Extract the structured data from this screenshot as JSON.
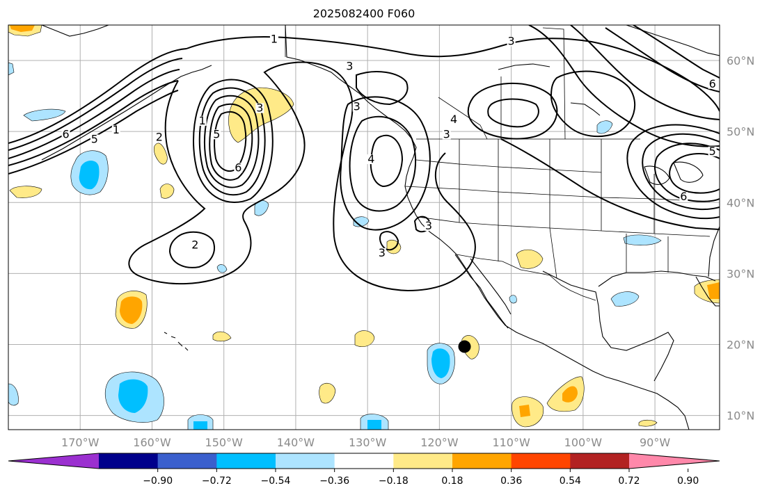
{
  "title": "2025082400 F060",
  "map": {
    "lon_range": [
      -180,
      -81
    ],
    "lat_range": [
      8,
      65
    ],
    "grid": true,
    "lon_ticks": [
      "170°W",
      "160°W",
      "150°W",
      "140°W",
      "130°W",
      "120°W",
      "110°W",
      "100°W",
      "90°W"
    ],
    "lat_ticks": [
      "60°N",
      "50°N",
      "40°N",
      "30°N",
      "20°N",
      "10°N"
    ],
    "marker": {
      "lon": -116.5,
      "lat": 19.7,
      "color": "#000000"
    }
  },
  "colorbar": {
    "ticks": [
      "−0.90",
      "−0.72",
      "−0.54",
      "−0.36",
      "−0.18",
      "0.18",
      "0.36",
      "0.54",
      "0.72",
      "0.90"
    ],
    "colors": [
      "#9b30d0",
      "#00008b",
      "#3a5fcd",
      "#00bfff",
      "#ade4ff",
      "#ffffff",
      "#ffea88",
      "#ffa500",
      "#ff4500",
      "#b22222",
      "#ff88aa"
    ]
  },
  "contours": {
    "labels": [
      {
        "text": "1",
        "lon": -143,
        "lat": 62.7
      },
      {
        "text": "3",
        "lon": -132.5,
        "lat": 58.9
      },
      {
        "text": "3",
        "lon": -110,
        "lat": 62.4
      },
      {
        "text": "6",
        "lon": -82,
        "lat": 56.4
      },
      {
        "text": "4",
        "lon": -118,
        "lat": 51.4
      },
      {
        "text": "3",
        "lon": -119,
        "lat": 49.3
      },
      {
        "text": "4",
        "lon": -129.5,
        "lat": 45.8
      },
      {
        "text": "3",
        "lon": -131.5,
        "lat": 53.2
      },
      {
        "text": "1",
        "lon": -165,
        "lat": 49.9
      },
      {
        "text": "5",
        "lon": -168,
        "lat": 48.6
      },
      {
        "text": "2",
        "lon": -159,
        "lat": 48.9
      },
      {
        "text": "6",
        "lon": -172,
        "lat": 49.3
      },
      {
        "text": "1",
        "lon": -153,
        "lat": 51.2
      },
      {
        "text": "5",
        "lon": -151,
        "lat": 49.3
      },
      {
        "text": "6",
        "lon": -148,
        "lat": 44.6
      },
      {
        "text": "3",
        "lon": -145,
        "lat": 53.0
      },
      {
        "text": "2",
        "lon": -154,
        "lat": 33.7
      },
      {
        "text": "3",
        "lon": -128,
        "lat": 32.6
      },
      {
        "text": "3",
        "lon": -121.5,
        "lat": 36.4
      },
      {
        "text": "5",
        "lon": -82,
        "lat": 46.9
      },
      {
        "text": "6",
        "lon": -86,
        "lat": 40.5
      }
    ]
  }
}
